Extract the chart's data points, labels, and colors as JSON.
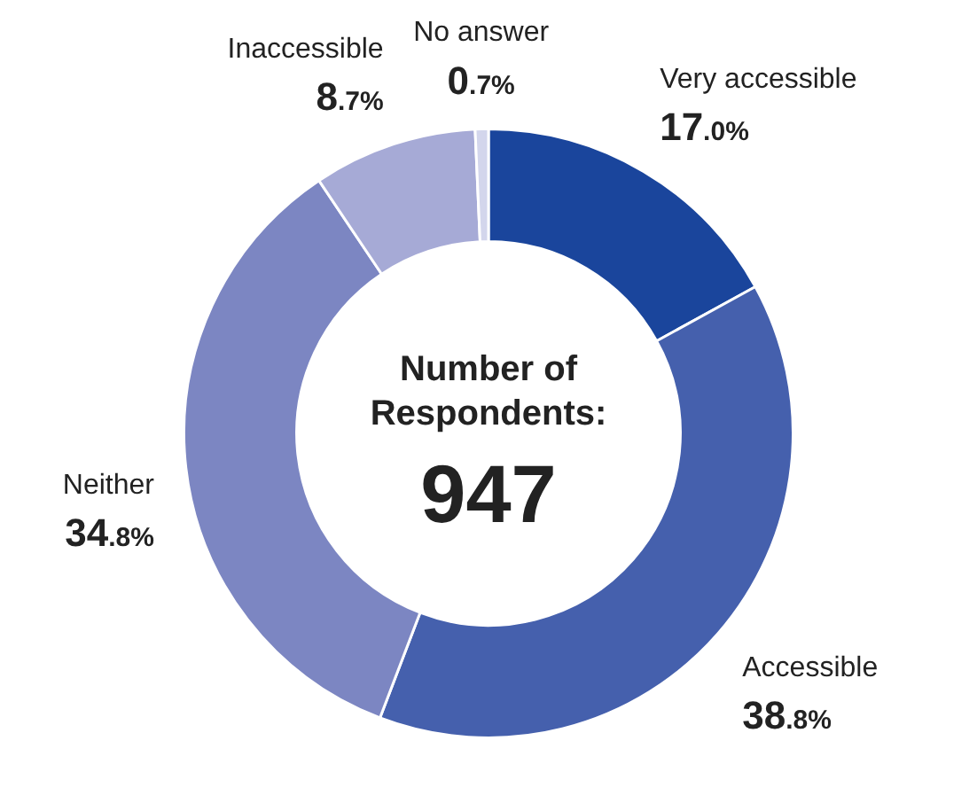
{
  "chart_data": {
    "type": "donut",
    "categories": [
      "Very accessible",
      "Accessible",
      "Neither",
      "Inaccessible",
      "No answer"
    ],
    "values": [
      17.0,
      38.8,
      34.8,
      8.7,
      0.7
    ],
    "value_labels": [
      "17.0%",
      "38.8%",
      "34.8%",
      "8.7%",
      "0.7%"
    ],
    "colors": [
      "#1a459c",
      "#4560ad",
      "#7c86c2",
      "#a6aad6",
      "#d3d6ec"
    ],
    "annotations": [
      "Number of Respondents:",
      "947"
    ],
    "legend": false
  }
}
